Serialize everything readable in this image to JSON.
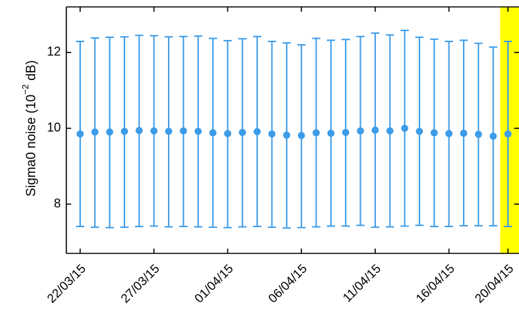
{
  "chart_data": {
    "type": "errorbar",
    "ylabel": "Sigma0 noise (10",
    "ylabel_exp": "−2",
    "ylabel_unit": " dB)",
    "ylim": [
      6.7,
      13.2
    ],
    "yticks": [
      8,
      10,
      12
    ],
    "x_start": "2015-03-22",
    "x_end": "2015-04-20",
    "xtick_labels": [
      "22/03/15",
      "27/03/15",
      "01/04/15",
      "06/04/15",
      "11/04/15",
      "16/04/15",
      "20/04/15"
    ],
    "xtick_dates": [
      "2015-03-22",
      "2015-03-27",
      "2015-04-01",
      "2015-04-06",
      "2015-04-11",
      "2015-04-16",
      "2015-04-20"
    ],
    "highlight_date": "2015-04-20",
    "points": [
      {
        "date": "2015-03-22",
        "mean": 9.85,
        "lower": 7.41,
        "upper": 12.29
      },
      {
        "date": "2015-03-23",
        "mean": 9.9,
        "lower": 7.39,
        "upper": 12.38
      },
      {
        "date": "2015-03-24",
        "mean": 9.9,
        "lower": 7.38,
        "upper": 12.4
      },
      {
        "date": "2015-03-25",
        "mean": 9.92,
        "lower": 7.39,
        "upper": 12.41
      },
      {
        "date": "2015-03-26",
        "mean": 9.94,
        "lower": 7.41,
        "upper": 12.45
      },
      {
        "date": "2015-03-27",
        "mean": 9.93,
        "lower": 7.42,
        "upper": 12.44
      },
      {
        "date": "2015-03-28",
        "mean": 9.92,
        "lower": 7.4,
        "upper": 12.41
      },
      {
        "date": "2015-03-29",
        "mean": 9.93,
        "lower": 7.41,
        "upper": 12.42
      },
      {
        "date": "2015-03-30",
        "mean": 9.92,
        "lower": 7.4,
        "upper": 12.43
      },
      {
        "date": "2015-03-31",
        "mean": 9.88,
        "lower": 7.39,
        "upper": 12.37
      },
      {
        "date": "2015-04-01",
        "mean": 9.86,
        "lower": 7.38,
        "upper": 12.31
      },
      {
        "date": "2015-04-02",
        "mean": 9.89,
        "lower": 7.4,
        "upper": 12.36
      },
      {
        "date": "2015-04-03",
        "mean": 9.91,
        "lower": 7.41,
        "upper": 12.42
      },
      {
        "date": "2015-04-04",
        "mean": 9.85,
        "lower": 7.39,
        "upper": 12.29
      },
      {
        "date": "2015-04-05",
        "mean": 9.82,
        "lower": 7.37,
        "upper": 12.25
      },
      {
        "date": "2015-04-06",
        "mean": 9.81,
        "lower": 7.38,
        "upper": 12.2
      },
      {
        "date": "2015-04-07",
        "mean": 9.88,
        "lower": 7.4,
        "upper": 12.37
      },
      {
        "date": "2015-04-08",
        "mean": 9.87,
        "lower": 7.42,
        "upper": 12.32
      },
      {
        "date": "2015-04-09",
        "mean": 9.89,
        "lower": 7.42,
        "upper": 12.34
      },
      {
        "date": "2015-04-10",
        "mean": 9.93,
        "lower": 7.44,
        "upper": 12.42
      },
      {
        "date": "2015-04-11",
        "mean": 9.95,
        "lower": 7.39,
        "upper": 12.51
      },
      {
        "date": "2015-04-12",
        "mean": 9.93,
        "lower": 7.4,
        "upper": 12.46
      },
      {
        "date": "2015-04-13",
        "mean": 10.0,
        "lower": 7.42,
        "upper": 12.58
      },
      {
        "date": "2015-04-14",
        "mean": 9.92,
        "lower": 7.44,
        "upper": 12.4
      },
      {
        "date": "2015-04-15",
        "mean": 9.88,
        "lower": 7.41,
        "upper": 12.35
      },
      {
        "date": "2015-04-16",
        "mean": 9.86,
        "lower": 7.41,
        "upper": 12.29
      },
      {
        "date": "2015-04-17",
        "mean": 9.87,
        "lower": 7.43,
        "upper": 12.32
      },
      {
        "date": "2015-04-18",
        "mean": 9.84,
        "lower": 7.43,
        "upper": 12.24
      },
      {
        "date": "2015-04-19",
        "mean": 9.79,
        "lower": 7.43,
        "upper": 12.14
      },
      {
        "date": "2015-04-20",
        "mean": 9.85,
        "lower": 7.41,
        "upper": 12.29
      }
    ],
    "colors": {
      "series": "#3d9ce8",
      "highlight": "#ffff00",
      "axis": "#000000"
    },
    "grid": false
  }
}
